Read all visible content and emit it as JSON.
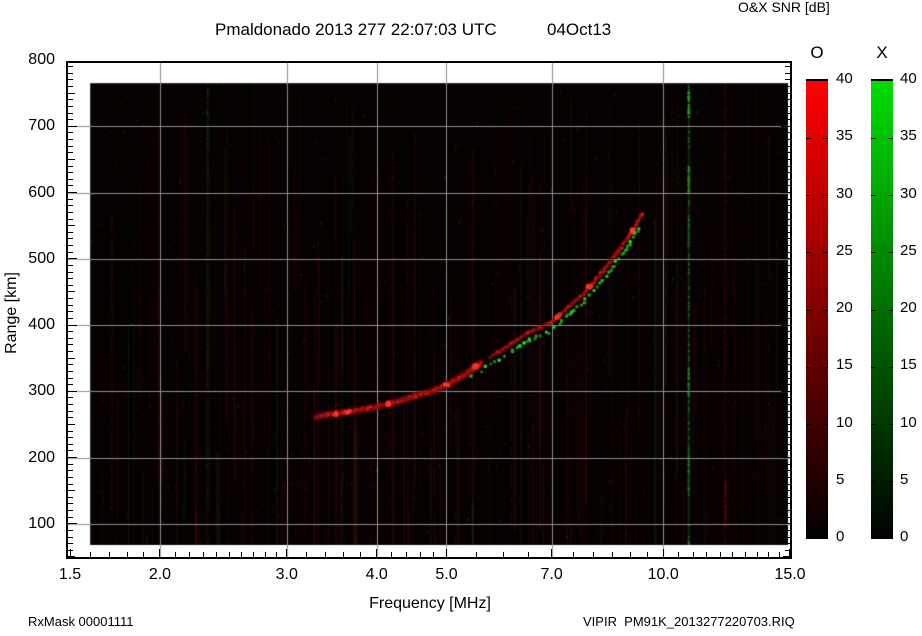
{
  "header": {
    "title_station": "Pmaldonado 2013 277 22:07:03 UTC",
    "title_date": "04Oct13",
    "colorbar_title": "O&X SNR [dB]"
  },
  "footer": {
    "rx_mask": "RxMask 00001111",
    "file_label": "VIPIR  PM91K_2013277220703.RIQ"
  },
  "chart_data": {
    "type": "heatmap",
    "title": "Pmaldonado 2013 277 22:07:03 UTC  04Oct13",
    "xlabel": "Frequency [MHz]",
    "ylabel": "Range [km]",
    "x_scale": "log",
    "xlim": [
      1.5,
      15.0
    ],
    "ylim": [
      50,
      800
    ],
    "grid": true,
    "x_ticks_major": [
      {
        "f": 1.5,
        "label": "1.5"
      },
      {
        "f": 2.0,
        "label": "2.0"
      },
      {
        "f": 3.0,
        "label": "3.0"
      },
      {
        "f": 4.0,
        "label": "4.0"
      },
      {
        "f": 5.0,
        "label": "5.0"
      },
      {
        "f": 7.0,
        "label": "7.0"
      },
      {
        "f": 10.0,
        "label": "10.0"
      },
      {
        "f": 15.0,
        "label": "15.0"
      }
    ],
    "x_ticks_minor": [
      1.6,
      1.7,
      1.8,
      1.9,
      2.1,
      2.2,
      2.3,
      2.4,
      2.5,
      2.6,
      2.7,
      2.8,
      2.9,
      3.2,
      3.4,
      3.6,
      3.8,
      4.2,
      4.4,
      4.6,
      4.8,
      5.5,
      6.0,
      6.5,
      7.5,
      8.0,
      8.5,
      9.0,
      9.5,
      10.5,
      11.0,
      11.5,
      12.0,
      12.5,
      13.0,
      13.5,
      14.0,
      14.5
    ],
    "y_ticks_major": [
      {
        "km": 800,
        "label": "800"
      },
      {
        "km": 700,
        "label": "700"
      },
      {
        "km": 600,
        "label": "600"
      },
      {
        "km": 500,
        "label": "500"
      },
      {
        "km": 400,
        "label": "400"
      },
      {
        "km": 300,
        "label": "300"
      },
      {
        "km": 200,
        "label": "200"
      },
      {
        "km": 100,
        "label": "100"
      }
    ],
    "y_minor_step": 10,
    "grid_lines": {
      "horizontal_km": [
        100,
        200,
        300,
        400,
        500,
        600,
        700
      ],
      "vertical_mhz": [
        2,
        3,
        4,
        5,
        7,
        10
      ]
    },
    "data_area": {
      "f_min": 1.6,
      "f_max": 14.9,
      "km_min": 68,
      "km_max": 765,
      "background": "#050101"
    },
    "series": [
      {
        "name": "O-mode echo trace",
        "color": "#cc1111",
        "points_f_km": [
          [
            3.3,
            262
          ],
          [
            3.6,
            268
          ],
          [
            3.9,
            274
          ],
          [
            4.2,
            282
          ],
          [
            4.5,
            292
          ],
          [
            4.8,
            301
          ],
          [
            5.0,
            309
          ],
          [
            5.2,
            320
          ],
          [
            5.4,
            331
          ],
          [
            5.55,
            341
          ],
          [
            5.9,
            359
          ],
          [
            6.2,
            374
          ],
          [
            6.5,
            389
          ],
          [
            7.0,
            404
          ],
          [
            7.4,
            428
          ],
          [
            7.8,
            450
          ],
          [
            8.2,
            478
          ],
          [
            8.6,
            507
          ],
          [
            9.0,
            537
          ],
          [
            9.35,
            568
          ]
        ],
        "gap_f": [
          5.62,
          5.86
        ],
        "hot_spots_f": [
          3.5,
          3.65,
          4.15,
          5.0,
          5.5,
          7.15,
          7.9,
          9.05
        ]
      },
      {
        "name": "X-mode echo trace",
        "color": "#22bb22",
        "points_f_km": [
          [
            5.25,
            318
          ],
          [
            5.4,
            322
          ],
          [
            5.9,
            348
          ],
          [
            6.2,
            362
          ],
          [
            6.5,
            377
          ],
          [
            7.0,
            392
          ],
          [
            7.4,
            415
          ],
          [
            7.8,
            438
          ],
          [
            8.2,
            466
          ],
          [
            8.6,
            495
          ],
          [
            9.0,
            525
          ],
          [
            9.3,
            550
          ]
        ]
      }
    ],
    "interference_lines": [
      {
        "f_mhz": 2.33,
        "color": "#1d8a1d",
        "base_alpha": 0.1,
        "bright_km": [
          [
            620,
            755,
            0.14
          ],
          [
            330,
            470,
            0.12
          ]
        ]
      },
      {
        "f_mhz": 10.85,
        "color": "#2ddb2d",
        "base_alpha": 0.2,
        "bright_km": [
          [
            715,
            752,
            0.7
          ],
          [
            598,
            640,
            0.6
          ],
          [
            283,
            337,
            0.5
          ],
          [
            518,
            560,
            0.28
          ],
          [
            150,
            220,
            0.25
          ],
          [
            55,
            78,
            0.45
          ]
        ]
      },
      {
        "f_mhz": 12.2,
        "color": "#aa1111",
        "base_alpha": 0.13,
        "bright_km": [
          [
            95,
            165,
            0.4
          ]
        ]
      }
    ],
    "colorbars": {
      "title": "O&X SNR [dB]",
      "range": [
        0,
        40
      ],
      "tick_values": [
        40,
        35,
        30,
        25,
        20,
        15,
        10,
        5,
        0
      ],
      "bars": [
        {
          "header": "O",
          "color": "#ff0000"
        },
        {
          "header": "X",
          "color": "#00dd00"
        }
      ]
    },
    "noise": {
      "red": "#961414",
      "green": "#1e8c1e",
      "density_columns": 340,
      "density_specks": 1600
    }
  }
}
